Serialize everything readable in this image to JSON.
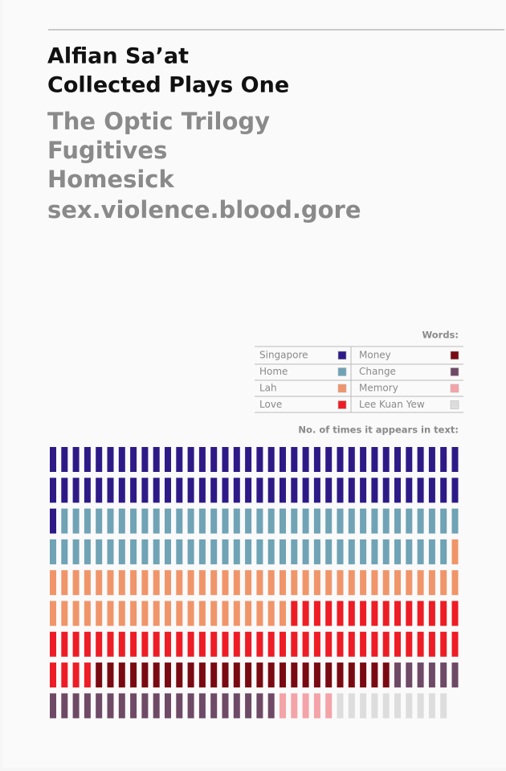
{
  "cover": {
    "author": "Alfian Sa’at",
    "book_title": "Collected Plays One",
    "plays": [
      "The Optic Trilogy",
      "Fugitives",
      "Homesick",
      "sex.violence.blood.gore"
    ],
    "legend_title": "Words:",
    "chart_caption": "No. of times it appears in text:"
  },
  "chart_data": {
    "type": "waffle",
    "per_row": 36,
    "series": [
      {
        "name": "Singapore",
        "color": "#2e1a87",
        "values": [
          73
        ]
      },
      {
        "name": "Home",
        "color": "#6fa3b5",
        "values": [
          70
        ]
      },
      {
        "name": "Lah",
        "color": "#f0956a",
        "values": [
          58
        ]
      },
      {
        "name": "Love",
        "color": "#ee1c25",
        "values": [
          55
        ]
      },
      {
        "name": "Money",
        "color": "#7a0a12",
        "values": [
          26
        ]
      },
      {
        "name": "Change",
        "color": "#6e4a66",
        "values": [
          26
        ]
      },
      {
        "name": "Memory",
        "color": "#f4a3a8",
        "values": [
          5
        ]
      },
      {
        "name": "Lee Kuan Yew",
        "color": "#dddddd",
        "values": [
          10
        ]
      }
    ]
  }
}
